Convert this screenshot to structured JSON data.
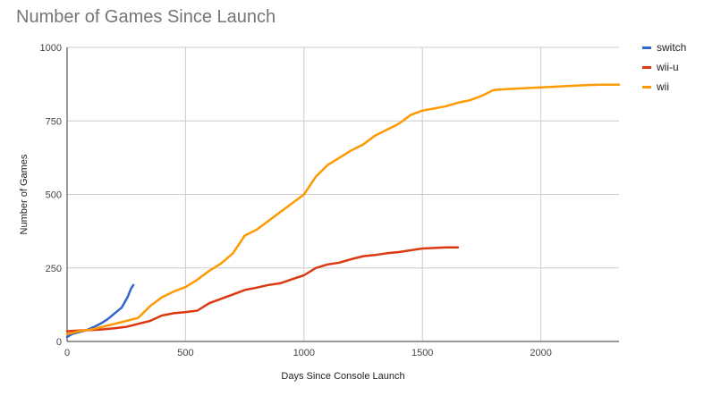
{
  "title": "Number of Games Since Launch",
  "colors": {
    "switch": "#3366cc",
    "wii-u": "#dc3912",
    "wii": "#ff9900",
    "grid": "#cccccc",
    "axis": "#333333"
  },
  "chart_data": {
    "type": "line",
    "title": "Number of Games Since Launch",
    "xlabel": "Days Since Console Launch",
    "ylabel": "Number of Games",
    "xlim": [
      0,
      2330
    ],
    "ylim": [
      0,
      1000
    ],
    "xticks": [
      0,
      500,
      1000,
      1500,
      2000
    ],
    "yticks": [
      0,
      250,
      500,
      750,
      1000
    ],
    "grid": true,
    "legend_position": "right",
    "series": [
      {
        "name": "switch",
        "color": "#3366cc",
        "x": [
          0,
          20,
          50,
          80,
          110,
          140,
          170,
          200,
          230,
          255,
          270,
          280
        ],
        "y": [
          15,
          25,
          32,
          38,
          48,
          60,
          75,
          95,
          115,
          150,
          180,
          192
        ]
      },
      {
        "name": "wii-u",
        "color": "#dc3912",
        "x": [
          0,
          50,
          100,
          150,
          200,
          250,
          300,
          350,
          400,
          450,
          500,
          550,
          600,
          650,
          700,
          750,
          800,
          850,
          900,
          950,
          1000,
          1050,
          1100,
          1150,
          1200,
          1250,
          1300,
          1350,
          1400,
          1450,
          1500,
          1550,
          1600,
          1650
        ],
        "y": [
          35,
          37,
          39,
          41,
          45,
          50,
          60,
          70,
          88,
          96,
          100,
          105,
          130,
          145,
          160,
          175,
          183,
          192,
          198,
          212,
          225,
          250,
          262,
          268,
          280,
          290,
          294,
          300,
          304,
          310,
          316,
          318,
          320,
          320
        ]
      },
      {
        "name": "wii",
        "color": "#ff9900",
        "x": [
          0,
          50,
          100,
          150,
          200,
          250,
          300,
          350,
          400,
          450,
          500,
          550,
          600,
          650,
          700,
          750,
          800,
          850,
          900,
          950,
          1000,
          1050,
          1100,
          1150,
          1200,
          1250,
          1300,
          1350,
          1400,
          1450,
          1500,
          1550,
          1600,
          1650,
          1700,
          1750,
          1800,
          1850,
          1900,
          1950,
          2000,
          2050,
          2100,
          2150,
          2200,
          2250,
          2330
        ],
        "y": [
          25,
          35,
          40,
          50,
          60,
          70,
          80,
          120,
          150,
          170,
          185,
          210,
          240,
          265,
          300,
          360,
          380,
          410,
          440,
          470,
          500,
          560,
          600,
          625,
          650,
          670,
          700,
          720,
          740,
          770,
          785,
          792,
          800,
          812,
          820,
          835,
          855,
          858,
          860,
          862,
          864,
          866,
          868,
          870,
          872,
          873,
          873
        ]
      }
    ]
  }
}
